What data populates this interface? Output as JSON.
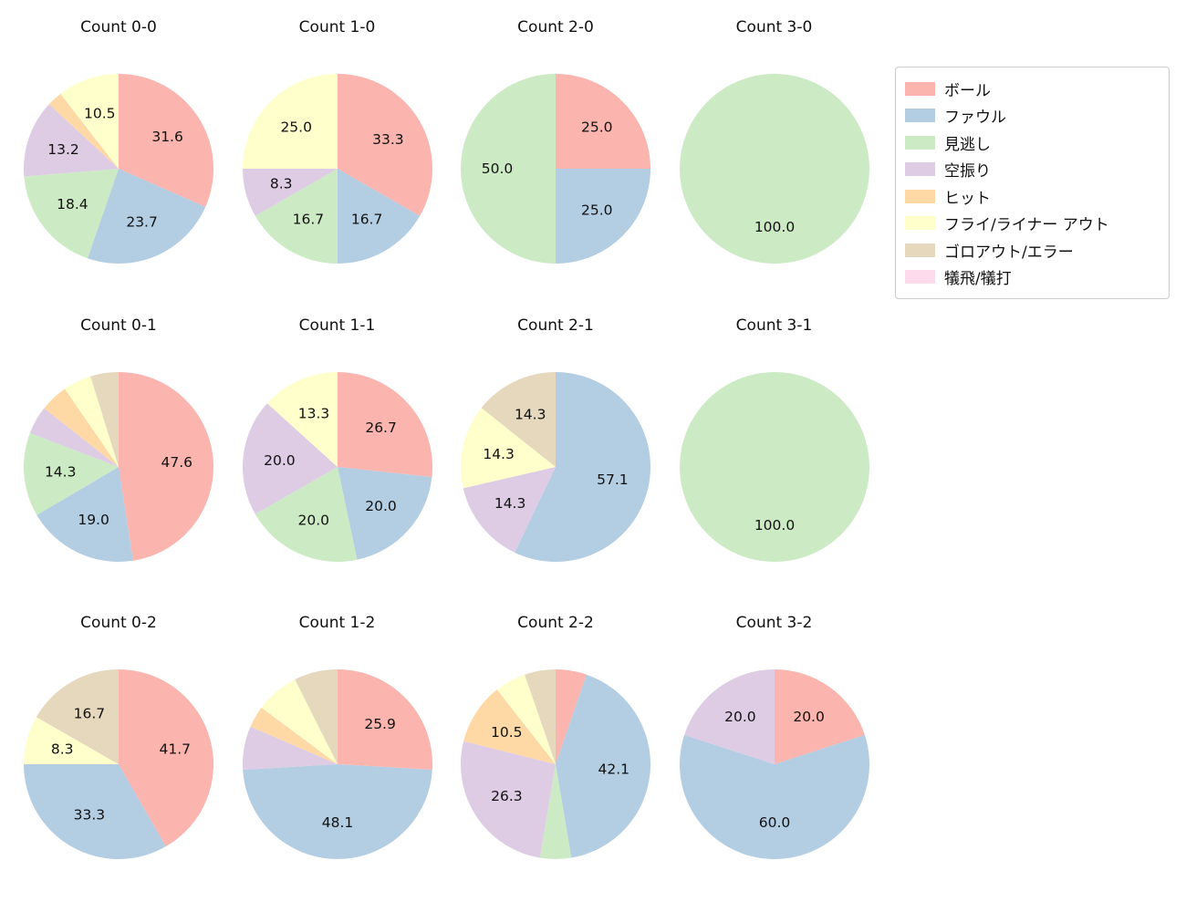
{
  "figure": {
    "background": "#ffffff",
    "legend_border": "#cccccc",
    "text_color": "#111111"
  },
  "legend": {
    "items": [
      {
        "key": "ball",
        "label": "ボール",
        "color": "#fbb4ae"
      },
      {
        "key": "foul",
        "label": "ファウル",
        "color": "#b3cde3"
      },
      {
        "key": "called-strike",
        "label": "見逃し",
        "color": "#ccebc5"
      },
      {
        "key": "swinging-strike",
        "label": "空振り",
        "color": "#decbe4"
      },
      {
        "key": "hit",
        "label": "ヒット",
        "color": "#fed9a6"
      },
      {
        "key": "fly-liner-out",
        "label": "フライ/ライナー アウト",
        "color": "#ffffcc"
      },
      {
        "key": "groundout-error",
        "label": "ゴロアウト/エラー",
        "color": "#e5d8bd"
      },
      {
        "key": "sacrifice",
        "label": "犠飛/犠打",
        "color": "#fddaec"
      }
    ]
  },
  "chart_data": [
    {
      "type": "pie",
      "title": "Count 0-0",
      "row": 0,
      "col": 0,
      "slices": [
        {
          "key": "ball",
          "value": 31.6,
          "show": true
        },
        {
          "key": "foul",
          "value": 23.7,
          "show": true
        },
        {
          "key": "called-strike",
          "value": 18.4,
          "show": true
        },
        {
          "key": "swinging-strike",
          "value": 13.2,
          "show": true
        },
        {
          "key": "hit",
          "value": 2.6,
          "show": false
        },
        {
          "key": "fly-liner-out",
          "value": 10.5,
          "show": true
        }
      ]
    },
    {
      "type": "pie",
      "title": "Count 1-0",
      "row": 0,
      "col": 1,
      "slices": [
        {
          "key": "ball",
          "value": 33.3,
          "show": true
        },
        {
          "key": "foul",
          "value": 16.7,
          "show": true
        },
        {
          "key": "called-strike",
          "value": 16.7,
          "show": true
        },
        {
          "key": "swinging-strike",
          "value": 8.3,
          "show": true
        },
        {
          "key": "fly-liner-out",
          "value": 25.0,
          "show": true
        }
      ]
    },
    {
      "type": "pie",
      "title": "Count 2-0",
      "row": 0,
      "col": 2,
      "slices": [
        {
          "key": "ball",
          "value": 25.0,
          "show": true
        },
        {
          "key": "foul",
          "value": 25.0,
          "show": true
        },
        {
          "key": "called-strike",
          "value": 50.0,
          "show": true
        }
      ]
    },
    {
      "type": "pie",
      "title": "Count 3-0",
      "row": 0,
      "col": 3,
      "slices": [
        {
          "key": "called-strike",
          "value": 100.0,
          "show": true
        }
      ]
    },
    {
      "type": "pie",
      "title": "Count 0-1",
      "row": 1,
      "col": 0,
      "slices": [
        {
          "key": "ball",
          "value": 47.6,
          "show": true
        },
        {
          "key": "foul",
          "value": 19.0,
          "show": true
        },
        {
          "key": "called-strike",
          "value": 14.3,
          "show": true
        },
        {
          "key": "swinging-strike",
          "value": 4.8,
          "show": false
        },
        {
          "key": "hit",
          "value": 4.8,
          "show": false
        },
        {
          "key": "fly-liner-out",
          "value": 4.8,
          "show": false
        },
        {
          "key": "groundout-error",
          "value": 4.8,
          "show": false
        }
      ]
    },
    {
      "type": "pie",
      "title": "Count 1-1",
      "row": 1,
      "col": 1,
      "slices": [
        {
          "key": "ball",
          "value": 26.7,
          "show": true
        },
        {
          "key": "foul",
          "value": 20.0,
          "show": true
        },
        {
          "key": "called-strike",
          "value": 20.0,
          "show": true
        },
        {
          "key": "swinging-strike",
          "value": 20.0,
          "show": true
        },
        {
          "key": "fly-liner-out",
          "value": 13.3,
          "show": true
        }
      ]
    },
    {
      "type": "pie",
      "title": "Count 2-1",
      "row": 1,
      "col": 2,
      "slices": [
        {
          "key": "foul",
          "value": 57.1,
          "show": true
        },
        {
          "key": "swinging-strike",
          "value": 14.3,
          "show": true
        },
        {
          "key": "fly-liner-out",
          "value": 14.3,
          "show": true
        },
        {
          "key": "groundout-error",
          "value": 14.3,
          "show": true
        }
      ]
    },
    {
      "type": "pie",
      "title": "Count 3-1",
      "row": 1,
      "col": 3,
      "slices": [
        {
          "key": "called-strike",
          "value": 100.0,
          "show": true
        }
      ]
    },
    {
      "type": "pie",
      "title": "Count 0-2",
      "row": 2,
      "col": 0,
      "slices": [
        {
          "key": "ball",
          "value": 41.7,
          "show": true
        },
        {
          "key": "foul",
          "value": 33.3,
          "show": true
        },
        {
          "key": "fly-liner-out",
          "value": 8.3,
          "show": true
        },
        {
          "key": "groundout-error",
          "value": 16.7,
          "show": true
        }
      ]
    },
    {
      "type": "pie",
      "title": "Count 1-2",
      "row": 2,
      "col": 1,
      "slices": [
        {
          "key": "ball",
          "value": 25.9,
          "show": true
        },
        {
          "key": "foul",
          "value": 48.1,
          "show": true
        },
        {
          "key": "swinging-strike",
          "value": 7.4,
          "show": false
        },
        {
          "key": "hit",
          "value": 3.7,
          "show": false
        },
        {
          "key": "fly-liner-out",
          "value": 7.4,
          "show": false
        },
        {
          "key": "groundout-error",
          "value": 7.4,
          "show": false
        }
      ]
    },
    {
      "type": "pie",
      "title": "Count 2-2",
      "row": 2,
      "col": 2,
      "slices": [
        {
          "key": "ball",
          "value": 5.3,
          "show": false
        },
        {
          "key": "foul",
          "value": 42.1,
          "show": true
        },
        {
          "key": "called-strike",
          "value": 5.3,
          "show": false
        },
        {
          "key": "swinging-strike",
          "value": 26.3,
          "show": true
        },
        {
          "key": "hit",
          "value": 10.5,
          "show": true
        },
        {
          "key": "fly-liner-out",
          "value": 5.3,
          "show": false
        },
        {
          "key": "groundout-error",
          "value": 5.3,
          "show": false
        }
      ]
    },
    {
      "type": "pie",
      "title": "Count 3-2",
      "row": 2,
      "col": 3,
      "slices": [
        {
          "key": "ball",
          "value": 20.0,
          "show": true
        },
        {
          "key": "foul",
          "value": 60.0,
          "show": true
        },
        {
          "key": "swinging-strike",
          "value": 20.0,
          "show": true
        }
      ]
    }
  ]
}
